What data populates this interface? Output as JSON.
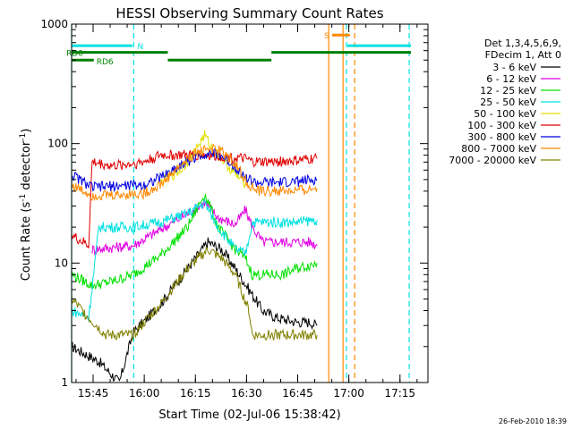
{
  "chart_data": {
    "type": "line",
    "title": "HESSI Observing Summary Count Rates",
    "xlabel": "Start Time (02-Jul-06 15:38:42)",
    "ylabel_main": "Count Rate (s",
    "ylabel_sup1": "-1",
    "ylabel_mid": " detector",
    "ylabel_sup2": "-1",
    "ylabel_end": ")",
    "timestamp": "26-Feb-2010 18:39",
    "y_scale": "log",
    "ylim": [
      1,
      1000
    ],
    "xlim_minutes": [
      0,
      104.5
    ],
    "x_ticks": [
      {
        "label": "15:45",
        "min": 6.3
      },
      {
        "label": "16:00",
        "min": 21.3
      },
      {
        "label": "16:15",
        "min": 36.3
      },
      {
        "label": "16:30",
        "min": 51.3
      },
      {
        "label": "16:45",
        "min": 66.3
      },
      {
        "label": "17:00",
        "min": 81.3
      },
      {
        "label": "17:15",
        "min": 96.3
      }
    ],
    "y_ticks": [
      {
        "label": "1",
        "v": 1
      },
      {
        "label": "10",
        "v": 10
      },
      {
        "label": "100",
        "v": 100
      },
      {
        "label": "1000",
        "v": 1000
      }
    ],
    "legend": {
      "header1": "Det 1,3,4,5,6,9,",
      "header2": "FDecim 1, Att 0",
      "placement": "right"
    },
    "series": [
      {
        "name": "3 - 6 keV",
        "color": "#000000",
        "points": [
          [
            0,
            2
          ],
          [
            8,
            1.5
          ],
          [
            14,
            1
          ],
          [
            18,
            2.6
          ],
          [
            26,
            4.5
          ],
          [
            34,
            9
          ],
          [
            40,
            15
          ],
          [
            44,
            13
          ],
          [
            48,
            9
          ],
          [
            52,
            6
          ],
          [
            56,
            4
          ],
          [
            60,
            3.5
          ],
          [
            66,
            3.2
          ],
          [
            70,
            3.2
          ],
          [
            72,
            3
          ]
        ]
      },
      {
        "name": "6 - 12 keV",
        "color": "#e000e0",
        "points": [
          [
            6,
            13
          ],
          [
            12,
            13.5
          ],
          [
            18,
            14
          ],
          [
            26,
            19
          ],
          [
            34,
            26
          ],
          [
            39,
            32
          ],
          [
            43,
            24
          ],
          [
            48,
            21
          ],
          [
            51,
            28
          ],
          [
            53,
            20
          ],
          [
            56,
            15
          ],
          [
            62,
            15
          ],
          [
            66,
            15
          ],
          [
            70,
            15
          ],
          [
            72,
            14
          ]
        ]
      },
      {
        "name": "12 - 25 keV",
        "color": "#00e000",
        "points": [
          [
            0,
            8
          ],
          [
            6,
            6.5
          ],
          [
            12,
            7
          ],
          [
            18,
            8
          ],
          [
            26,
            11.5
          ],
          [
            34,
            20
          ],
          [
            39,
            38
          ],
          [
            43,
            20
          ],
          [
            48,
            13
          ],
          [
            51,
            11
          ],
          [
            53,
            8
          ],
          [
            56,
            8
          ],
          [
            62,
            8
          ],
          [
            66,
            9
          ],
          [
            72,
            10
          ]
        ]
      },
      {
        "name": "25 - 50 keV",
        "color": "#00e0e0",
        "points": [
          [
            0,
            4
          ],
          [
            5,
            3.5
          ],
          [
            8,
            20
          ],
          [
            14,
            20
          ],
          [
            18,
            20
          ],
          [
            26,
            22
          ],
          [
            34,
            26
          ],
          [
            39,
            32
          ],
          [
            43,
            20
          ],
          [
            48,
            13
          ],
          [
            51,
            12
          ],
          [
            53,
            22
          ],
          [
            56,
            22
          ],
          [
            62,
            22
          ],
          [
            66,
            22
          ],
          [
            72,
            23
          ]
        ]
      },
      {
        "name": "50 - 100 keV",
        "color": "#e0e000",
        "points": [
          [
            26,
            47
          ],
          [
            32,
            60
          ],
          [
            36,
            85
          ],
          [
            39,
            118
          ],
          [
            41,
            92
          ],
          [
            44,
            75
          ],
          [
            48,
            55
          ],
          [
            51,
            47
          ]
        ]
      },
      {
        "name": "100 - 300 keV",
        "color": "#e00000",
        "points": [
          [
            0,
            17
          ],
          [
            5,
            14
          ],
          [
            6,
            70
          ],
          [
            12,
            65
          ],
          [
            18,
            68
          ],
          [
            21,
            70
          ],
          [
            26,
            80
          ],
          [
            32,
            80
          ],
          [
            39,
            80
          ],
          [
            45,
            78
          ],
          [
            51,
            74
          ],
          [
            53,
            70
          ],
          [
            58,
            70
          ],
          [
            66,
            72
          ],
          [
            72,
            75
          ]
        ]
      },
      {
        "name": "300 - 800 keV",
        "color": "#0000e0",
        "points": [
          [
            0,
            55
          ],
          [
            6,
            43
          ],
          [
            12,
            44
          ],
          [
            18,
            45
          ],
          [
            21,
            45
          ],
          [
            26,
            52
          ],
          [
            32,
            66
          ],
          [
            36,
            76
          ],
          [
            40,
            84
          ],
          [
            44,
            79
          ],
          [
            48,
            64
          ],
          [
            51,
            52
          ],
          [
            54,
            47
          ],
          [
            60,
            47
          ],
          [
            66,
            48
          ],
          [
            72,
            50
          ]
        ]
      },
      {
        "name": "800 - 7000 keV",
        "color": "#ff8800",
        "points": [
          [
            0,
            45
          ],
          [
            6,
            37
          ],
          [
            12,
            37
          ],
          [
            18,
            38
          ],
          [
            21,
            38
          ],
          [
            26,
            45
          ],
          [
            32,
            66
          ],
          [
            36,
            82
          ],
          [
            40,
            92
          ],
          [
            44,
            86
          ],
          [
            48,
            68
          ],
          [
            51,
            49
          ],
          [
            54,
            40
          ],
          [
            60,
            40
          ],
          [
            66,
            40
          ],
          [
            72,
            42
          ]
        ]
      },
      {
        "name": "7000 - 20000 keV",
        "color": "#808000",
        "points": [
          [
            0,
            5
          ],
          [
            5,
            3.5
          ],
          [
            10,
            2.5
          ],
          [
            18,
            2.5
          ],
          [
            26,
            4.5
          ],
          [
            34,
            9
          ],
          [
            40,
            13
          ],
          [
            44,
            11
          ],
          [
            48,
            8
          ],
          [
            52,
            4
          ],
          [
            53,
            2.5
          ],
          [
            60,
            2.5
          ],
          [
            66,
            2.5
          ],
          [
            72,
            2.5
          ]
        ]
      }
    ],
    "flag_bars": [
      {
        "label": "N",
        "color": "#00e0e0",
        "v": 660,
        "segments": [
          [
            0,
            17.8
          ],
          [
            80.9,
            99.5
          ]
        ]
      },
      {
        "label": "RD0",
        "color": "#008000",
        "v": 580,
        "segments": [
          [
            0,
            28.2
          ],
          [
            58.6,
            99.5
          ]
        ]
      },
      {
        "label": "RD6",
        "color": "#008000",
        "v": 500,
        "segments": [
          [
            0,
            6.5
          ],
          [
            28.2,
            58.6
          ]
        ]
      },
      {
        "label": "S",
        "color": "#ff8800",
        "v": 810,
        "segments": [
          [
            76.4,
            81.6
          ]
        ]
      }
    ],
    "vlines": [
      {
        "min": 0,
        "color": "#00e0e0",
        "style": "solid"
      },
      {
        "min": 18.2,
        "color": "#00e0e0",
        "style": "dash"
      },
      {
        "min": 75.4,
        "color": "#ff8800",
        "style": "solid"
      },
      {
        "min": 79.6,
        "color": "#ff8800",
        "style": "solid"
      },
      {
        "min": 80.6,
        "color": "#00e0e0",
        "style": "dash"
      },
      {
        "min": 83.0,
        "color": "#ff8800",
        "style": "dash"
      },
      {
        "min": 99.0,
        "color": "#00e0e0",
        "style": "dash"
      }
    ]
  }
}
